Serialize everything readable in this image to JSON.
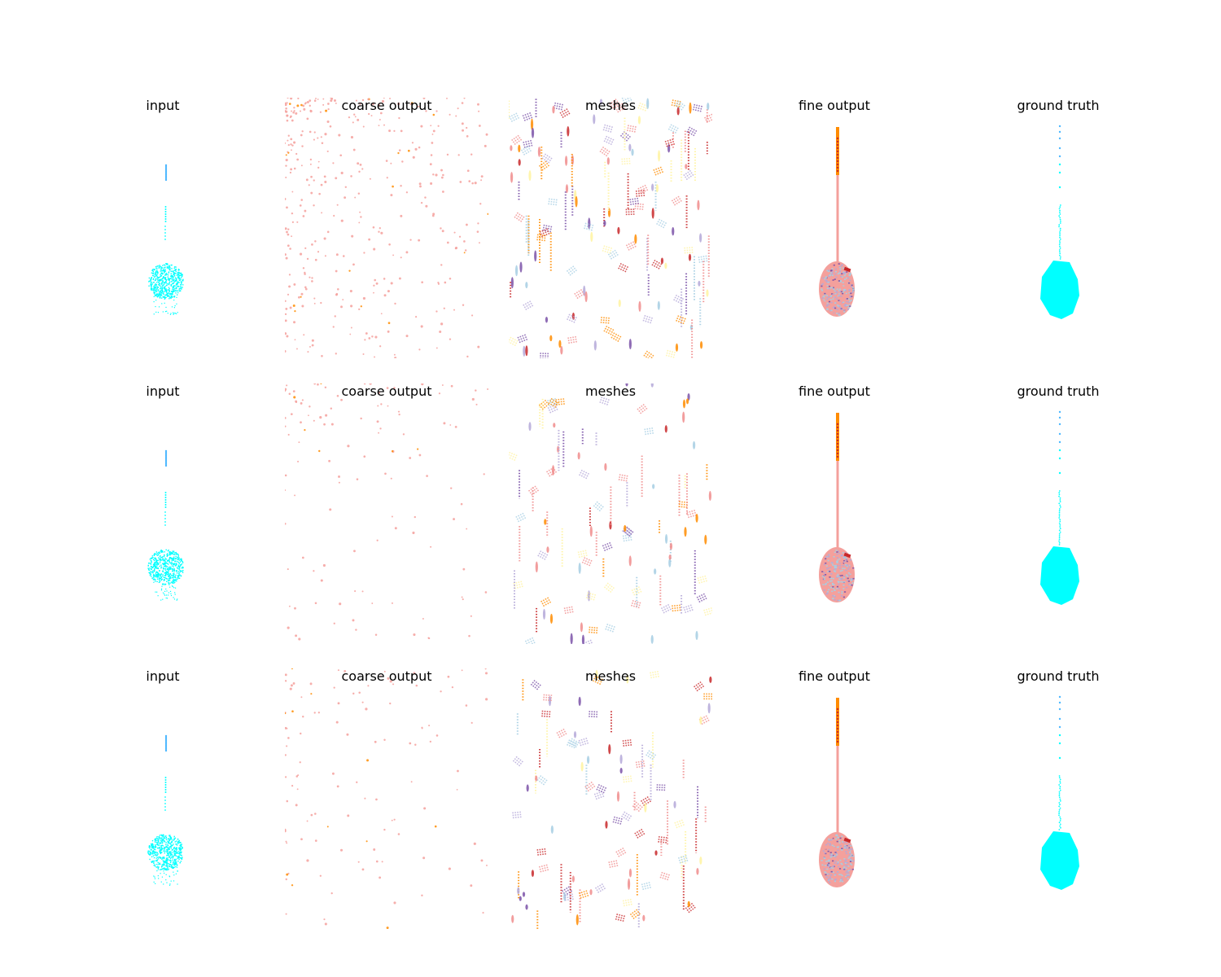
{
  "figure": {
    "rows": [
      {
        "panels": [
          {
            "kind": "input",
            "title": "input"
          },
          {
            "kind": "coarse",
            "title": "coarse output"
          },
          {
            "kind": "meshes",
            "title": "meshes"
          },
          {
            "kind": "fine",
            "title": "fine output"
          },
          {
            "kind": "gt",
            "title": "ground truth"
          }
        ]
      },
      {
        "panels": [
          {
            "kind": "input",
            "title": "input"
          },
          {
            "kind": "coarse",
            "title": "coarse output"
          },
          {
            "kind": "meshes",
            "title": "meshes"
          },
          {
            "kind": "fine",
            "title": "fine output"
          },
          {
            "kind": "gt",
            "title": "ground truth"
          }
        ]
      },
      {
        "panels": [
          {
            "kind": "input",
            "title": "input"
          },
          {
            "kind": "coarse",
            "title": "coarse output"
          },
          {
            "kind": "meshes",
            "title": "meshes"
          },
          {
            "kind": "fine",
            "title": "fine output"
          },
          {
            "kind": "gt",
            "title": "ground truth"
          }
        ]
      }
    ],
    "colors": {
      "cyan": "#00ffff",
      "sky_blue": "#4db8ff",
      "salmon": "#f4a09c",
      "pink": "#f08c8c",
      "orange": "#ff8c00",
      "dark_red": "#c8282a",
      "light_blue": "#a6cee3",
      "lavender": "#b4a8d8",
      "purple": "#7b52a8",
      "yellow": "#fff3a0"
    }
  }
}
